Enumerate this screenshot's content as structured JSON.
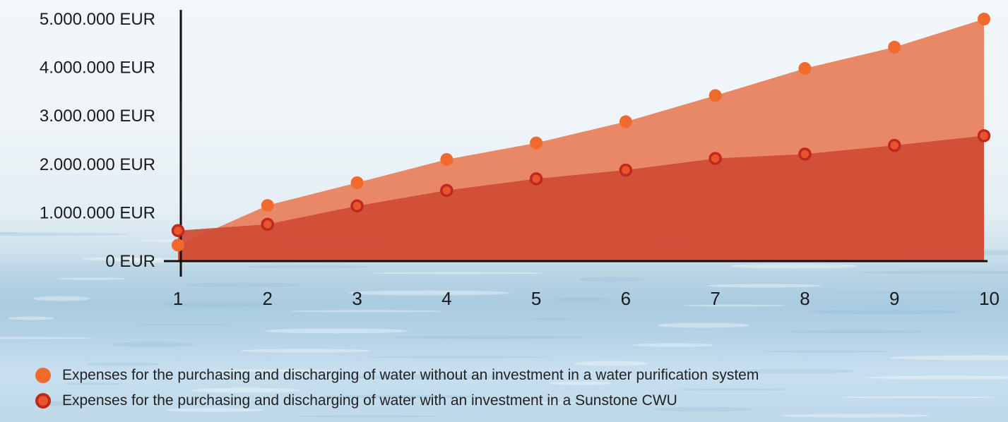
{
  "chart_data": {
    "type": "area",
    "x": [
      1,
      2,
      3,
      4,
      5,
      6,
      7,
      8,
      9,
      10
    ],
    "ylim": [
      0,
      5000000
    ],
    "y_ticks": [
      "0 EUR",
      "1.000.000 EUR",
      "2.000.000 EUR",
      "3.000.000 EUR",
      "4.000.000 EUR",
      "5.000.000 EUR"
    ],
    "x_ticks": [
      "1",
      "2",
      "3",
      "4",
      "5",
      "6",
      "7",
      "8",
      "9",
      "10"
    ],
    "grid": false,
    "legend_position": "bottom-left",
    "series": [
      {
        "name": "Expenses for the purchasing and discharging of water without an investment in a water purification system",
        "values": [
          330000,
          1150000,
          1620000,
          2100000,
          2440000,
          2880000,
          3420000,
          3980000,
          4420000,
          5000000
        ],
        "color": "#f06a2e",
        "fill": "#e8825f"
      },
      {
        "name": "Expenses for the purchasing and discharging of water with an investment in a Sunstone CWU",
        "values": [
          630000,
          760000,
          1140000,
          1460000,
          1700000,
          1880000,
          2120000,
          2210000,
          2390000,
          2590000
        ],
        "color": "#e8552c",
        "ring": "#c0281e",
        "fill": "#d04a35"
      }
    ]
  }
}
